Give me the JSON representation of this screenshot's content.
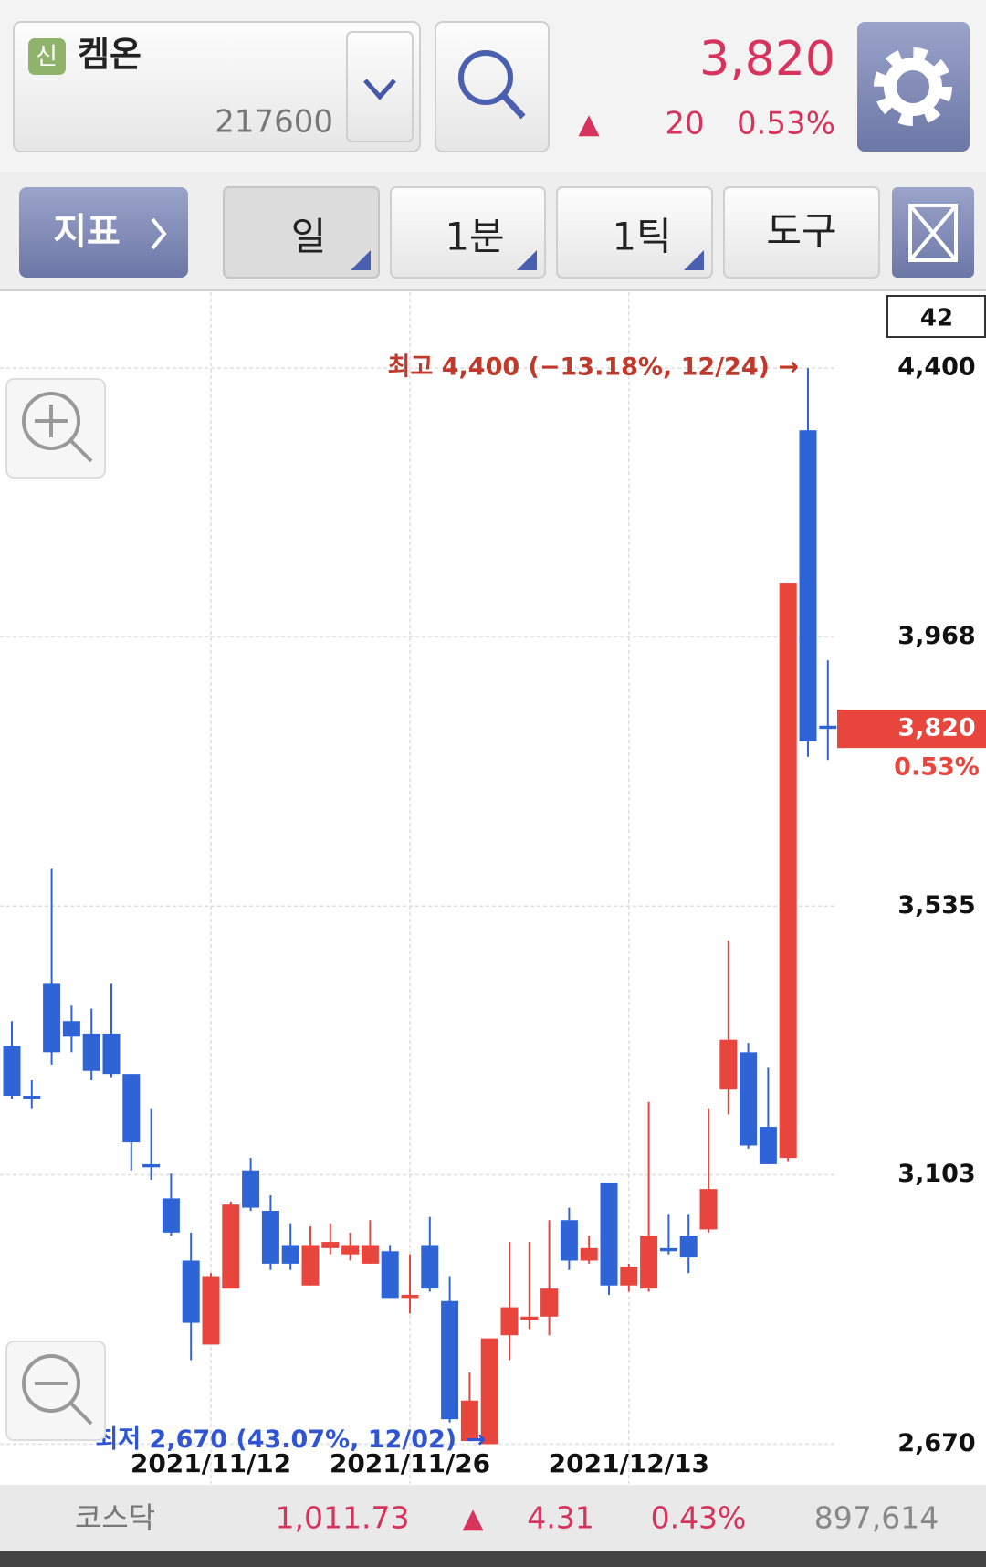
{
  "header": {
    "badge": "신",
    "stock_name": "켐온",
    "stock_code": "217600",
    "price": "3,820",
    "change_arrow": "▲",
    "change": "20",
    "change_pct": "0.53%"
  },
  "toolbar": {
    "indicator": "지표",
    "periods": [
      "일",
      "1분",
      "1틱"
    ],
    "tool": "도구"
  },
  "chart_data": {
    "type": "candlestick",
    "categories": [
      null,
      null,
      null,
      null,
      null,
      null,
      null,
      null,
      null,
      null,
      "2021/11/12",
      null,
      null,
      null,
      null,
      null,
      null,
      null,
      null,
      null,
      "2021/11/26",
      null,
      null,
      null,
      null,
      null,
      null,
      null,
      null,
      null,
      null,
      "2021/12/13",
      null,
      null,
      null,
      null,
      null,
      null,
      null,
      null,
      null,
      null
    ],
    "open": [
      3310,
      3230,
      3410,
      3350,
      3330,
      3330,
      3265,
      3120,
      3065,
      2965,
      2830,
      2920,
      3110,
      3045,
      2990,
      2925,
      2985,
      2975,
      2960,
      2980,
      2905,
      2990,
      2900,
      2675,
      2670,
      2845,
      2870,
      2875,
      3030,
      2965,
      3090,
      2925,
      2920,
      2985,
      3005,
      3015,
      3240,
      3300,
      3180,
      3130,
      4300,
      3825
    ],
    "high": [
      3350,
      3255,
      3595,
      3375,
      3370,
      3410,
      3265,
      3210,
      3105,
      3010,
      2945,
      3060,
      3130,
      3070,
      3025,
      3020,
      3025,
      3010,
      3030,
      2990,
      2975,
      3035,
      2940,
      2785,
      2840,
      2995,
      2995,
      3030,
      3050,
      3005,
      3090,
      2960,
      3220,
      3040,
      3040,
      3210,
      3480,
      3315,
      3275,
      4055,
      4400,
      3930
    ],
    "low": [
      3225,
      3210,
      3280,
      3300,
      3255,
      3260,
      3110,
      3095,
      3005,
      2805,
      2830,
      2920,
      3045,
      2950,
      2950,
      2925,
      2975,
      2965,
      2960,
      2905,
      2880,
      2915,
      2705,
      2675,
      2670,
      2805,
      2855,
      2845,
      2950,
      2960,
      2910,
      2915,
      2915,
      2975,
      2945,
      3010,
      3200,
      3145,
      3120,
      3125,
      3775,
      3770
    ],
    "close": [
      3230,
      3225,
      3300,
      3325,
      3270,
      3265,
      3155,
      3115,
      3010,
      2865,
      2940,
      3055,
      3050,
      2960,
      2960,
      2990,
      2995,
      2990,
      2990,
      2905,
      2910,
      2920,
      2710,
      2740,
      2840,
      2890,
      2875,
      2920,
      2965,
      2985,
      2925,
      2955,
      3005,
      2980,
      2970,
      3080,
      3320,
      3150,
      3120,
      4055,
      3800,
      3820
    ],
    "up_color": "#e8453c",
    "down_color": "#2f64d6",
    "ylim": [
      2606,
      4522
    ],
    "yticks": [
      {
        "value": 2670,
        "label": "2,670"
      },
      {
        "value": 3103,
        "label": "3,103"
      },
      {
        "value": 3535,
        "label": "3,535"
      },
      {
        "value": 3968,
        "label": "3,968"
      },
      {
        "value": 4400,
        "label": "4,400"
      }
    ],
    "grid": true,
    "visible_count": 42,
    "high_label": "최고 4,400 (−13.18%, 12/24) →",
    "low_label": "최저 2,670 (43.07%, 12/02) →",
    "last_price_label": "3,820",
    "last_change_label": "0.53%"
  },
  "footer": {
    "index_name": "코스닥",
    "index_value": "1,011.73",
    "change_arrow": "▲",
    "change": "4.31",
    "change_pct": "0.43%",
    "volume": "897,614"
  }
}
